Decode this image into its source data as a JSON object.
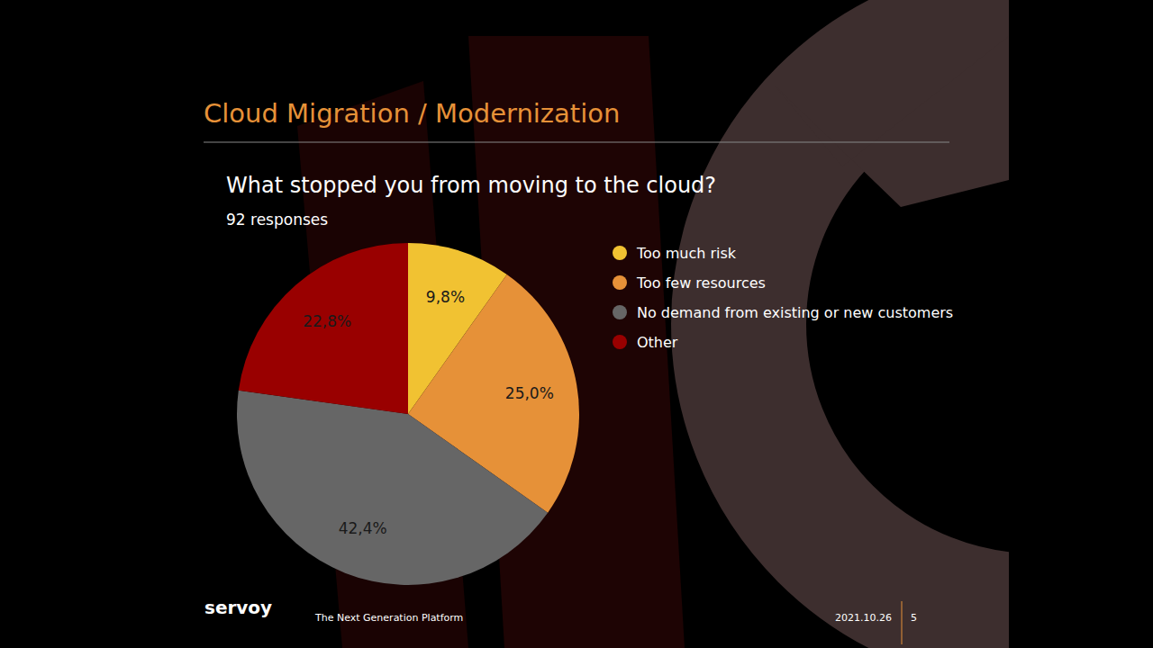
{
  "slide": {
    "heading": "Cloud Migration / Modernization",
    "footer": {
      "logo": "servoy",
      "tagline": "The Next Generation Platform",
      "date": "2021.10.26",
      "page": "5"
    }
  },
  "chart_data": {
    "type": "pie",
    "title": "What stopped you from moving to the cloud?",
    "subtitle": "92 responses",
    "categories": [
      "Too much risk",
      "Too few resources",
      "No demand from existing or new customers",
      "Other"
    ],
    "values": [
      9.8,
      25.0,
      42.4,
      22.8
    ],
    "value_labels": [
      "9,8%",
      "25,0%",
      "42,4%",
      "22,8%"
    ],
    "colors": [
      "#f1c232",
      "#e69138",
      "#666666",
      "#990000"
    ],
    "data_labels": true,
    "legend": "right"
  }
}
